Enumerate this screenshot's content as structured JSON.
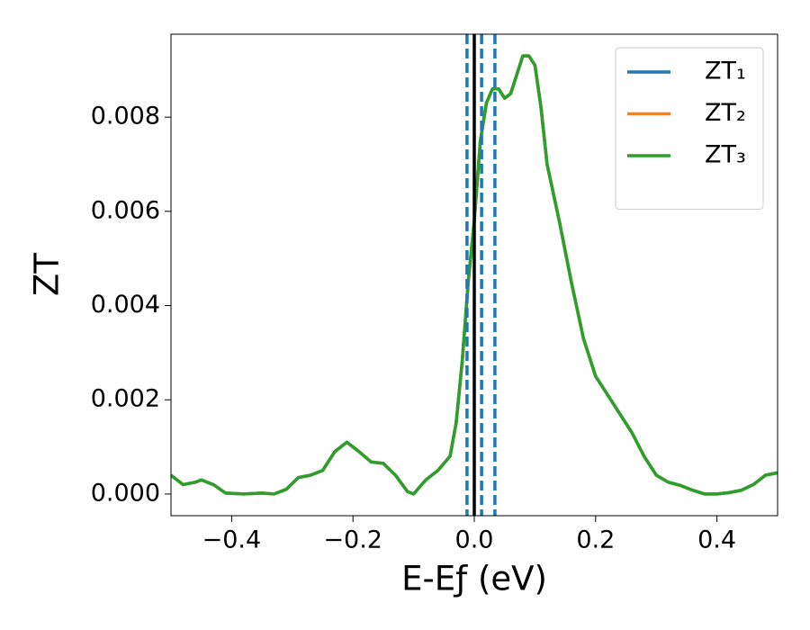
{
  "chart_data": {
    "type": "line",
    "xlabel": "E-Eƒ (eV)",
    "ylabel": "ZT",
    "x": [
      -0.5,
      -0.48,
      -0.46,
      -0.45,
      -0.43,
      -0.41,
      -0.38,
      -0.35,
      -0.33,
      -0.31,
      -0.29,
      -0.27,
      -0.25,
      -0.23,
      -0.21,
      -0.19,
      -0.17,
      -0.15,
      -0.13,
      -0.11,
      -0.1,
      -0.08,
      -0.06,
      -0.04,
      -0.03,
      -0.02,
      -0.01,
      0.0,
      0.01,
      0.02,
      0.03,
      0.04,
      0.05,
      0.06,
      0.07,
      0.08,
      0.09,
      0.1,
      0.11,
      0.12,
      0.14,
      0.16,
      0.18,
      0.2,
      0.22,
      0.24,
      0.26,
      0.28,
      0.3,
      0.32,
      0.34,
      0.36,
      0.38,
      0.4,
      0.42,
      0.44,
      0.46,
      0.48,
      0.5
    ],
    "series": [
      {
        "name": "ZT₁",
        "color": "#1f77b4",
        "values": [
          0.0004,
          0.0002,
          0.00025,
          0.0003,
          0.0002,
          2e-05,
          0.0,
          2e-05,
          0.0,
          0.0001,
          0.00035,
          0.0004,
          0.0005,
          0.0009,
          0.0011,
          0.0009,
          0.00068,
          0.00065,
          0.0004,
          5e-05,
          0.0,
          0.0003,
          0.0005,
          0.0008,
          0.0015,
          0.0028,
          0.0045,
          0.0058,
          0.0075,
          0.0083,
          0.0086,
          0.0086,
          0.0084,
          0.0085,
          0.0089,
          0.0093,
          0.0093,
          0.0091,
          0.0082,
          0.007,
          0.0058,
          0.0045,
          0.0033,
          0.0025,
          0.0021,
          0.0017,
          0.0013,
          0.0008,
          0.0004,
          0.00025,
          0.00018,
          8e-05,
          0.0,
          0.0,
          3e-05,
          8e-05,
          0.0002,
          0.0004,
          0.00045
        ]
      },
      {
        "name": "ZT₂",
        "color": "#ff7f0e",
        "values": [
          0.0004,
          0.0002,
          0.00025,
          0.0003,
          0.0002,
          2e-05,
          0.0,
          2e-05,
          0.0,
          0.0001,
          0.00035,
          0.0004,
          0.0005,
          0.0009,
          0.0011,
          0.0009,
          0.00068,
          0.00065,
          0.0004,
          5e-05,
          0.0,
          0.0003,
          0.0005,
          0.0008,
          0.0015,
          0.0028,
          0.0045,
          0.0058,
          0.0075,
          0.0083,
          0.0086,
          0.0086,
          0.0084,
          0.0085,
          0.0089,
          0.0093,
          0.0093,
          0.0091,
          0.0082,
          0.007,
          0.0058,
          0.0045,
          0.0033,
          0.0025,
          0.0021,
          0.0017,
          0.0013,
          0.0008,
          0.0004,
          0.00025,
          0.00018,
          8e-05,
          0.0,
          0.0,
          3e-05,
          8e-05,
          0.0002,
          0.0004,
          0.00045
        ]
      },
      {
        "name": "ZT₃",
        "color": "#2ca02c",
        "values": [
          0.0004,
          0.0002,
          0.00025,
          0.0003,
          0.0002,
          2e-05,
          0.0,
          2e-05,
          0.0,
          0.0001,
          0.00035,
          0.0004,
          0.0005,
          0.0009,
          0.0011,
          0.0009,
          0.00068,
          0.00065,
          0.0004,
          5e-05,
          0.0,
          0.0003,
          0.0005,
          0.0008,
          0.0015,
          0.0028,
          0.0045,
          0.0058,
          0.0075,
          0.0083,
          0.0086,
          0.0086,
          0.0084,
          0.0085,
          0.0089,
          0.0093,
          0.0093,
          0.0091,
          0.0082,
          0.007,
          0.0058,
          0.0045,
          0.0033,
          0.0025,
          0.0021,
          0.0017,
          0.0013,
          0.0008,
          0.0004,
          0.00025,
          0.00018,
          8e-05,
          0.0,
          0.0,
          3e-05,
          8e-05,
          0.0002,
          0.0004,
          0.00045
        ]
      }
    ],
    "vlines": [
      {
        "x": 0.0,
        "color": "#000000",
        "dashed": false
      },
      {
        "x": -0.012,
        "color": "#1f77b4",
        "dashed": true
      },
      {
        "x": 0.012,
        "color": "#1f77b4",
        "dashed": true
      },
      {
        "x": 0.034,
        "color": "#1f77b4",
        "dashed": true
      }
    ],
    "xlim": [
      -0.5,
      0.5
    ],
    "xticks": [
      {
        "value": -0.4,
        "label": "−0.4"
      },
      {
        "value": -0.2,
        "label": "−0.2"
      },
      {
        "value": 0.0,
        "label": "0.0"
      },
      0.2,
      0.4
    ],
    "ylim": [
      -0.00046,
      0.00976
    ],
    "yticks": [
      {
        "value": 0.0,
        "label": "0.000"
      },
      0.002,
      0.004,
      0.006,
      0.008
    ],
    "grid": false,
    "legend": "upper right"
  }
}
